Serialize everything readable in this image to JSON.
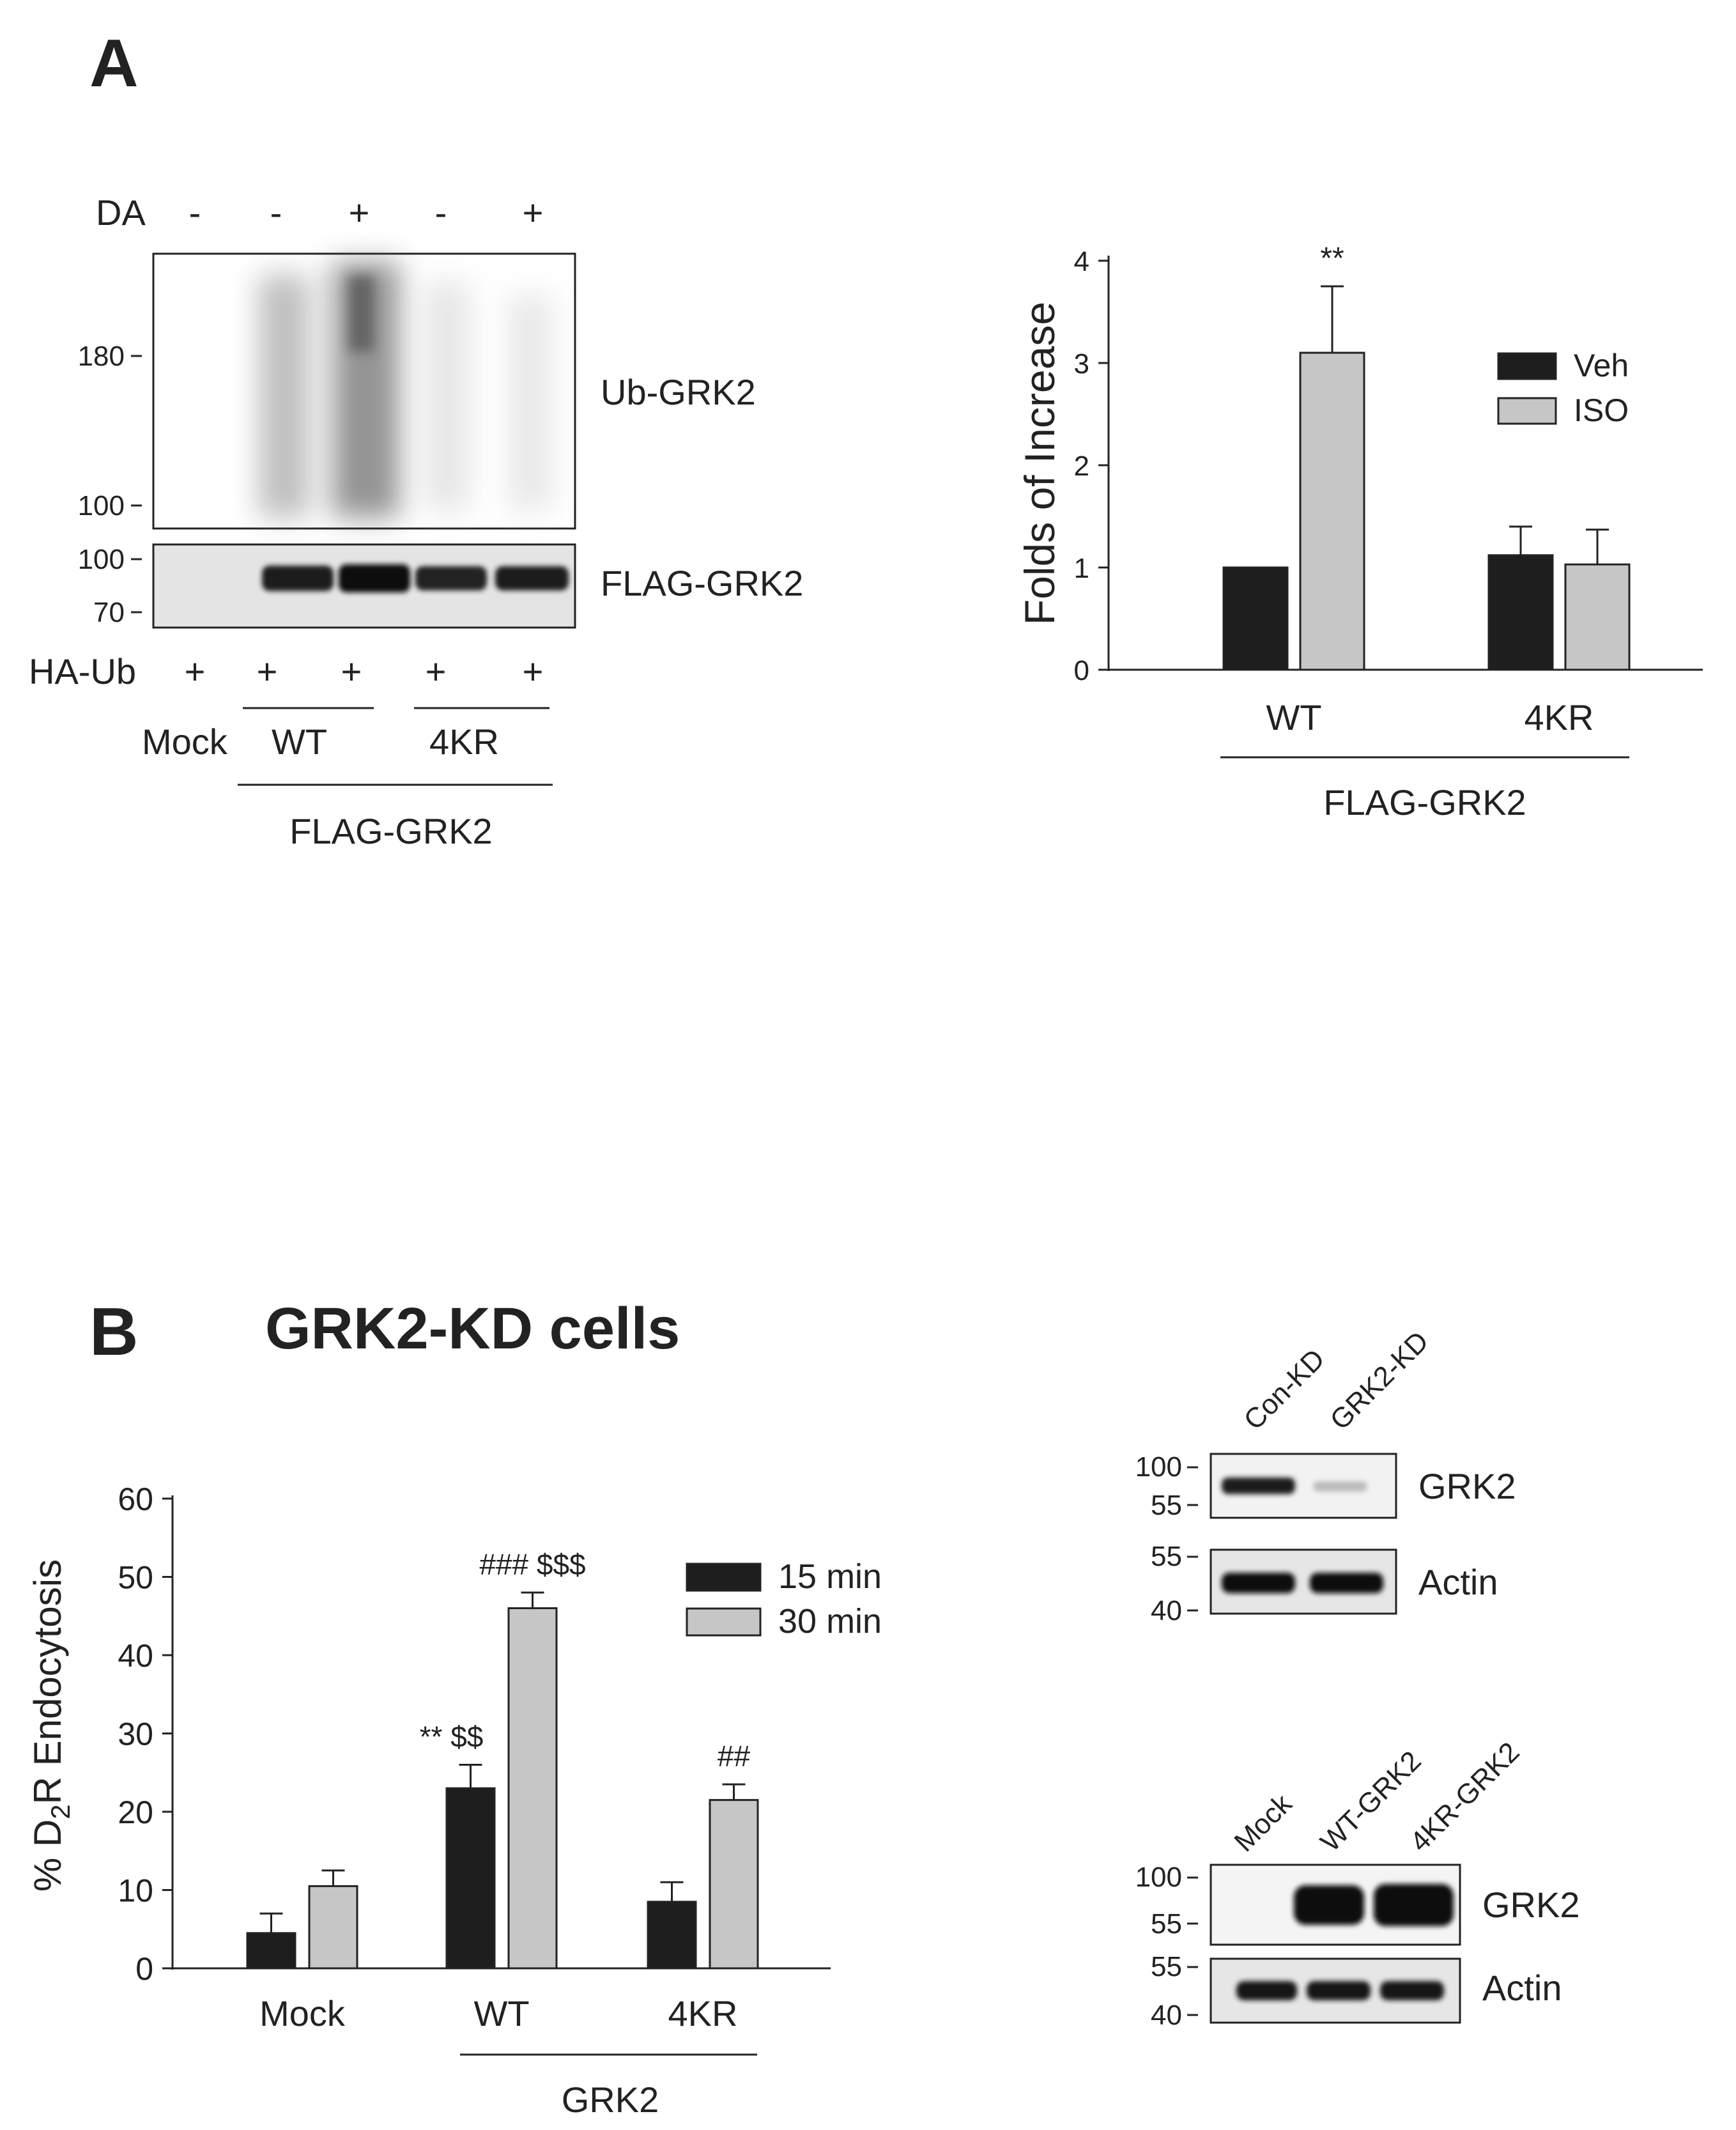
{
  "panelA": {
    "letter": "A",
    "blot": {
      "da_label": "DA",
      "da": [
        "-",
        "-",
        "+",
        "-",
        "+"
      ],
      "mw_top": [
        "180",
        "100"
      ],
      "mw_bottom": [
        "100",
        "70"
      ],
      "band_top": "Ub-GRK2",
      "band_bottom": "FLAG-GRK2",
      "haub_label": "HA-Ub",
      "haub": [
        "+",
        "+",
        "+",
        "+",
        "+"
      ],
      "groups": [
        "Mock",
        "WT",
        "4KR"
      ],
      "construct": "FLAG-GRK2"
    }
  },
  "panelB": {
    "letter": "B",
    "title": "GRK2-KD cells",
    "blot_kd": {
      "lanes": [
        "Con-KD",
        "GRK2-KD"
      ],
      "mw_top": [
        "100",
        "55"
      ],
      "mw_bottom": [
        "55",
        "40"
      ],
      "band_top": "GRK2",
      "band_bottom": "Actin"
    },
    "blot_rescue": {
      "lanes": [
        "Mock",
        "WT-GRK2",
        "4KR-GRK2"
      ],
      "mw_top": [
        "100",
        "55"
      ],
      "mw_bottom": [
        "55",
        "40"
      ],
      "band_top": "GRK2",
      "band_bottom": "Actin"
    }
  },
  "chart_data": [
    {
      "type": "bar",
      "categories": [
        "WT",
        "4KR"
      ],
      "group_label": "FLAG-GRK2",
      "ylabel": "Folds of Increase",
      "ylim": [
        0,
        4
      ],
      "yticks": [
        "0",
        "1",
        "2",
        "3",
        "4"
      ],
      "legend_position": "top-right",
      "series": [
        {
          "name": "Veh",
          "color": "#1e1e1e",
          "values": [
            1.0,
            1.12
          ],
          "errors": [
            0,
            0.28
          ]
        },
        {
          "name": "ISO",
          "color": "#c6c6c6",
          "values": [
            3.1,
            1.03
          ],
          "errors": [
            0.65,
            0.34
          ]
        }
      ],
      "annotations": [
        {
          "text": "**",
          "category": "WT",
          "series": "ISO"
        }
      ]
    },
    {
      "type": "bar",
      "categories": [
        "Mock",
        "WT",
        "4KR"
      ],
      "group_label": "GRK2",
      "ylabel_prefix": "% D",
      "ylabel_sub": "2",
      "ylabel_suffix": "R Endocytosis",
      "ylim": [
        0,
        60
      ],
      "yticks": [
        "0",
        "10",
        "20",
        "30",
        "40",
        "50",
        "60"
      ],
      "legend_position": "top-right",
      "series": [
        {
          "name": "15 min",
          "color": "#1e1e1e",
          "values": [
            4.5,
            23,
            8.5
          ],
          "errors": [
            2.5,
            3,
            2.5
          ]
        },
        {
          "name": "30 min",
          "color": "#c6c6c6",
          "values": [
            10.5,
            46,
            21.5
          ],
          "errors": [
            2,
            2,
            2
          ]
        }
      ],
      "annotations": [
        {
          "text": "** $$",
          "category": "WT",
          "series": "15 min"
        },
        {
          "text": "### $$$",
          "category": "WT",
          "series": "30 min"
        },
        {
          "text": "##",
          "category": "4KR",
          "series": "30 min"
        }
      ]
    }
  ]
}
